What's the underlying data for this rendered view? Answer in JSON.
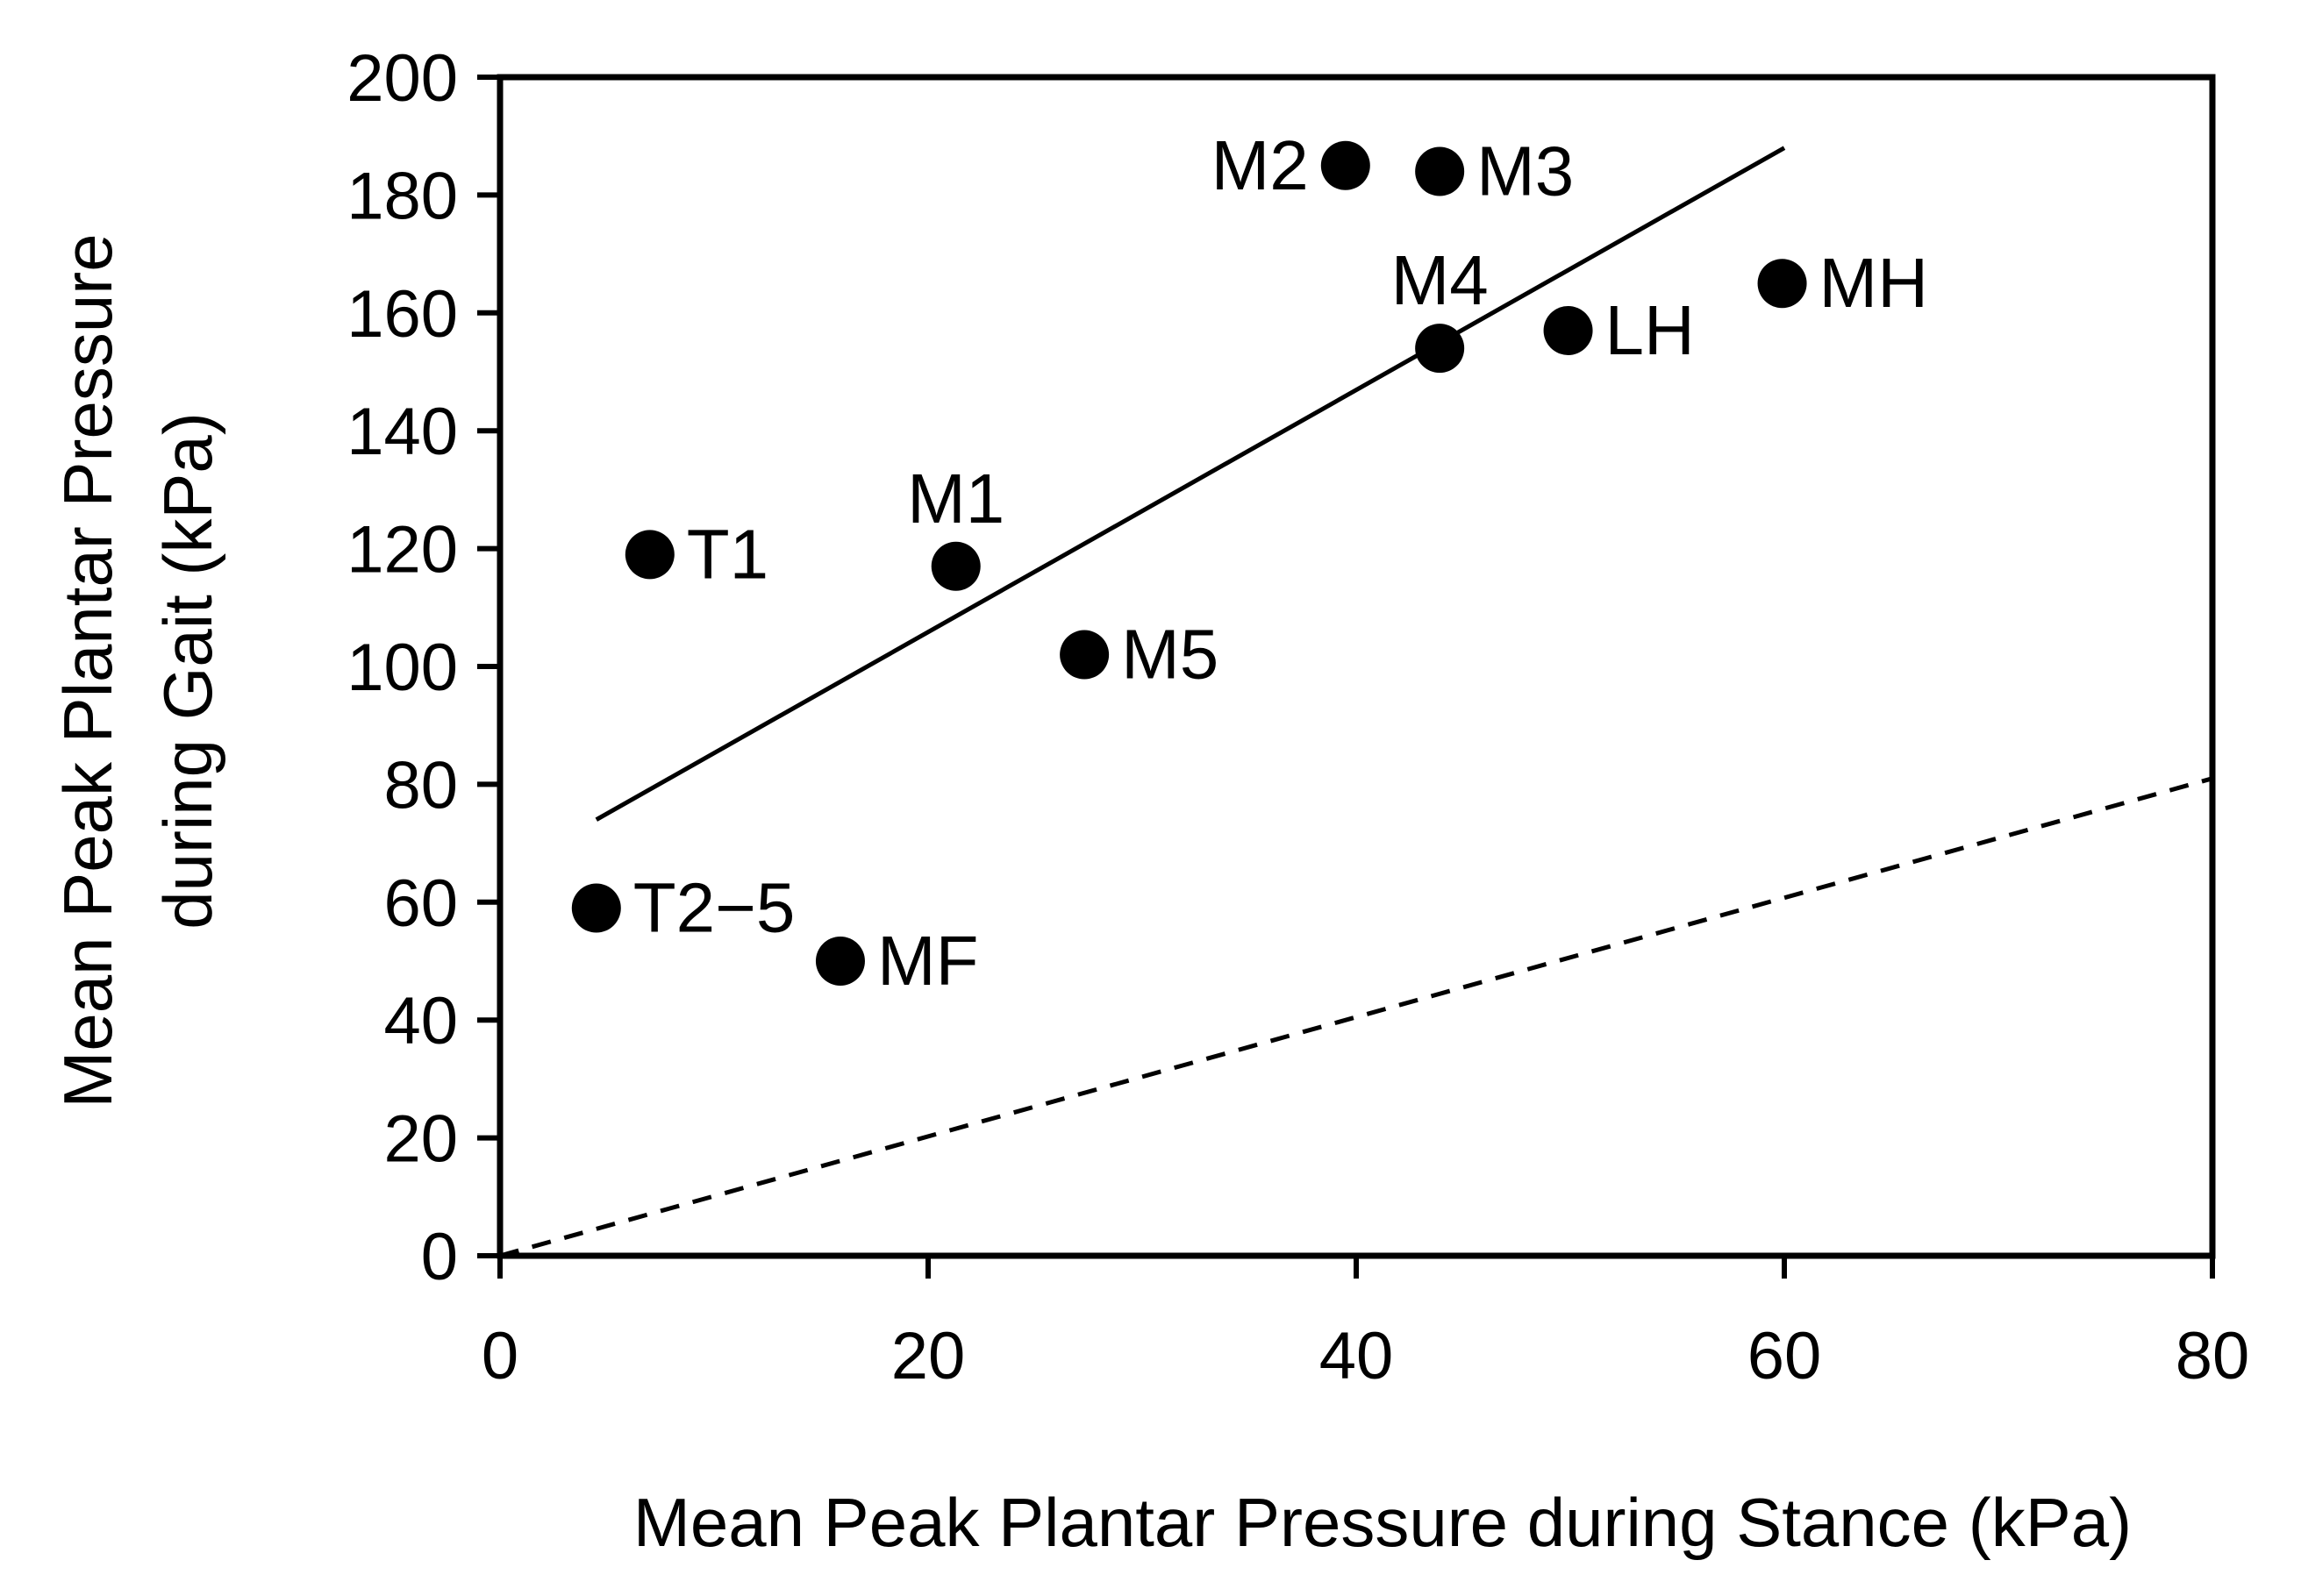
{
  "chart_data": {
    "type": "scatter",
    "title": "",
    "xlabel": "Mean Peak Plantar Pressure during Stance (kPa)",
    "ylabel_lines": [
      "Mean Peak Plantar Pressure",
      "during Gait (kPa)"
    ],
    "xlim": [
      0,
      80
    ],
    "ylim": [
      0,
      200
    ],
    "x_ticks": [
      0,
      20,
      40,
      60,
      80
    ],
    "y_ticks": [
      0,
      20,
      40,
      60,
      80,
      100,
      120,
      140,
      160,
      180,
      200
    ],
    "grid": false,
    "legend": "none",
    "points": [
      {
        "label": "M2",
        "x": 39.5,
        "y": 185,
        "label_side": "left"
      },
      {
        "label": "M3",
        "x": 43.9,
        "y": 184,
        "label_side": "right"
      },
      {
        "label": "MH",
        "x": 59.9,
        "y": 165,
        "label_side": "right"
      },
      {
        "label": "LH",
        "x": 49.9,
        "y": 157,
        "label_side": "right"
      },
      {
        "label": "M4",
        "x": 43.9,
        "y": 154,
        "label_side": "above"
      },
      {
        "label": "T1",
        "x": 7.0,
        "y": 119,
        "label_side": "right"
      },
      {
        "label": "M1",
        "x": 21.3,
        "y": 117,
        "label_side": "above"
      },
      {
        "label": "M5",
        "x": 27.3,
        "y": 102,
        "label_side": "right"
      },
      {
        "label": "T2−5",
        "x": 4.5,
        "y": 59,
        "label_side": "right"
      },
      {
        "label": "MF",
        "x": 15.9,
        "y": 50,
        "label_side": "right"
      }
    ],
    "trend_line": {
      "style": "solid",
      "x": [
        4.5,
        60
      ],
      "y": [
        74,
        188
      ]
    },
    "identity_line": {
      "style": "dashed",
      "x": [
        0,
        80
      ],
      "y": [
        0,
        81
      ]
    }
  }
}
